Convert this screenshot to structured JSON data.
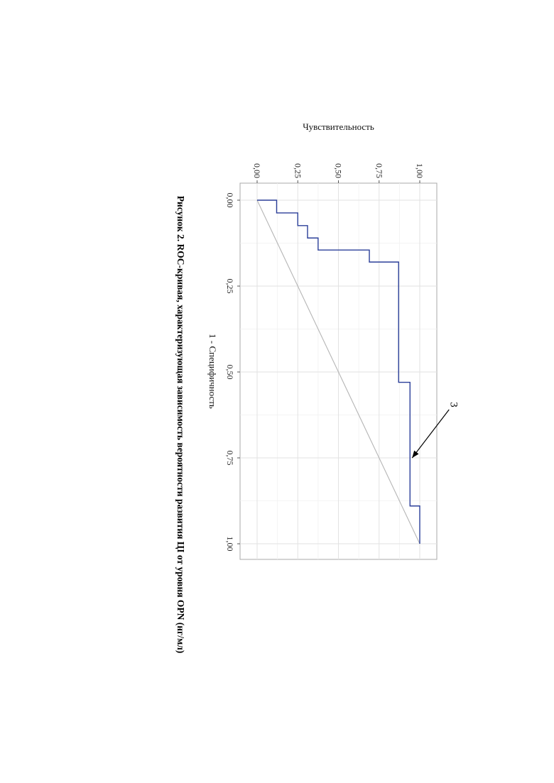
{
  "chart_data": {
    "type": "line",
    "title": "",
    "xlabel": "1 - Специфичность",
    "ylabel": "Чувствительность",
    "xlim": [
      0,
      1
    ],
    "ylim": [
      0,
      1
    ],
    "x_ticks": [
      0,
      0.25,
      0.5,
      0.75,
      1
    ],
    "x_tick_labels": [
      "0,00",
      "0,25",
      "0,50",
      "0,75",
      "1,00"
    ],
    "y_ticks": [
      0,
      0.25,
      0.5,
      0.75,
      1
    ],
    "y_tick_labels": [
      "0,00",
      "0,25",
      "0,50",
      "0,75",
      "1,00"
    ],
    "grid": true,
    "series": [
      {
        "color": "#2b3f99",
        "step": true,
        "points": [
          [
            0,
            0
          ],
          [
            0,
            0.12
          ],
          [
            0.037,
            0.12
          ],
          [
            0.037,
            0.25
          ],
          [
            0.074,
            0.25
          ],
          [
            0.074,
            0.31
          ],
          [
            0.11,
            0.31
          ],
          [
            0.11,
            0.375
          ],
          [
            0.145,
            0.375
          ],
          [
            0.145,
            0.69
          ],
          [
            0.18,
            0.69
          ],
          [
            0.18,
            0.87
          ],
          [
            0.53,
            0.87
          ],
          [
            0.53,
            0.94
          ],
          [
            0.89,
            0.94
          ],
          [
            0.89,
            1
          ],
          [
            1,
            1
          ]
        ]
      },
      {
        "color": "#b5b5b5",
        "points": [
          [
            0,
            0
          ],
          [
            1,
            1
          ]
        ]
      }
    ],
    "annotations": [
      {
        "text": "3",
        "target": [
          0.75,
          0.94
        ]
      }
    ]
  },
  "caption": "Рисунок 2. ROC-кривая, характеризующая зависимость вероятности развития ЦI от уровня OPN (нг/мл)"
}
